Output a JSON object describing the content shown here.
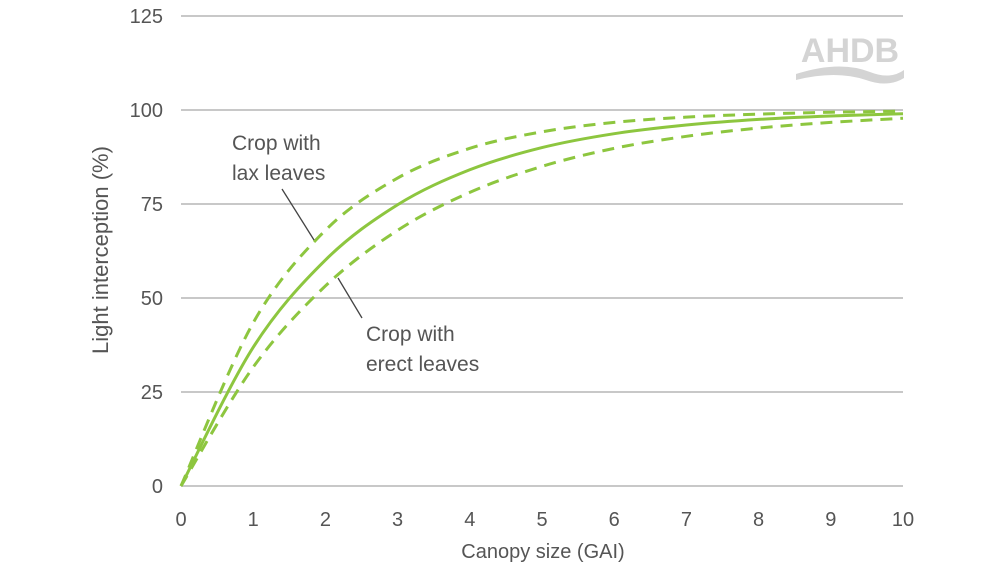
{
  "chart_data": {
    "type": "line",
    "xlabel": "Canopy size (GAI)",
    "ylabel": "Light interception (%)",
    "xlim": [
      0,
      10
    ],
    "ylim": [
      0,
      125
    ],
    "xticks": [
      "0",
      "1",
      "2",
      "3",
      "4",
      "5",
      "6",
      "7",
      "8",
      "9",
      "10"
    ],
    "yticks": [
      "0",
      "25",
      "50",
      "75",
      "100",
      "125"
    ],
    "grid": "horizontal",
    "x": [
      0,
      1,
      2,
      3,
      4,
      5,
      6,
      7,
      8,
      9,
      10
    ],
    "series": [
      {
        "style": "dashed",
        "values": [
          0,
          43.4,
          68.0,
          81.9,
          89.8,
          94.2,
          96.7,
          98.1,
          98.9,
          99.4,
          99.7
        ]
      },
      {
        "style": "solid",
        "values": [
          0,
          36.9,
          60.1,
          74.8,
          84.1,
          90.0,
          93.7,
          96.0,
          97.5,
          98.4,
          99.0
        ]
      },
      {
        "style": "dashed",
        "values": [
          0,
          31.6,
          53.2,
          68.0,
          78.1,
          85.0,
          89.8,
          93.0,
          95.2,
          96.7,
          97.8
        ]
      }
    ],
    "annotations": [
      {
        "lines": [
          "Crop with",
          "lax leaves"
        ],
        "target_series": 0
      },
      {
        "lines": [
          "Crop with",
          "erect leaves"
        ],
        "target_series": 2
      }
    ],
    "colors": {
      "line": "#8dc63f",
      "grid": "#c8c8c8",
      "text": "#555555",
      "logo": "#d4d4d4"
    }
  },
  "logo": "AHDB"
}
